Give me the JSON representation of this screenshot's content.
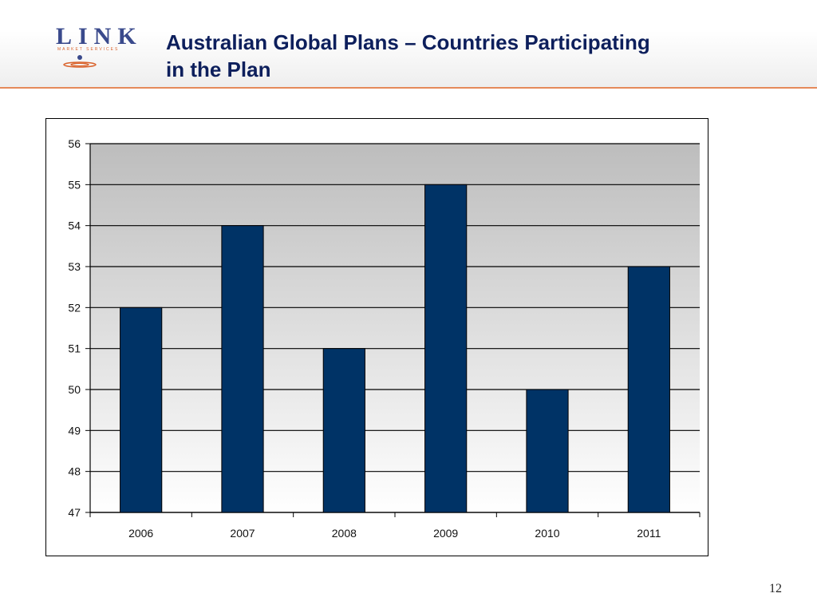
{
  "header": {
    "logo": {
      "word": "LINK",
      "subtitle": "MARKET SERVICES",
      "brand_color": "#3a4a8c",
      "accent_color": "#d9622b"
    },
    "title_line1": "Australian Global Plans – Countries Participating",
    "title_line2": "in the Plan"
  },
  "chart_data": {
    "type": "bar",
    "categories": [
      "2006",
      "2007",
      "2008",
      "2009",
      "2010",
      "2011"
    ],
    "values": [
      52,
      54,
      51,
      55,
      50,
      53
    ],
    "title": "",
    "xlabel": "",
    "ylabel": "",
    "ylim": [
      47,
      56
    ],
    "yticks": [
      "47",
      "48",
      "49",
      "50",
      "51",
      "52",
      "53",
      "54",
      "55",
      "56"
    ],
    "grid": true,
    "legend": "none",
    "bar_color": "#003366",
    "plot_background": "gradient grey to white"
  },
  "footer": {
    "page_number": "12"
  }
}
